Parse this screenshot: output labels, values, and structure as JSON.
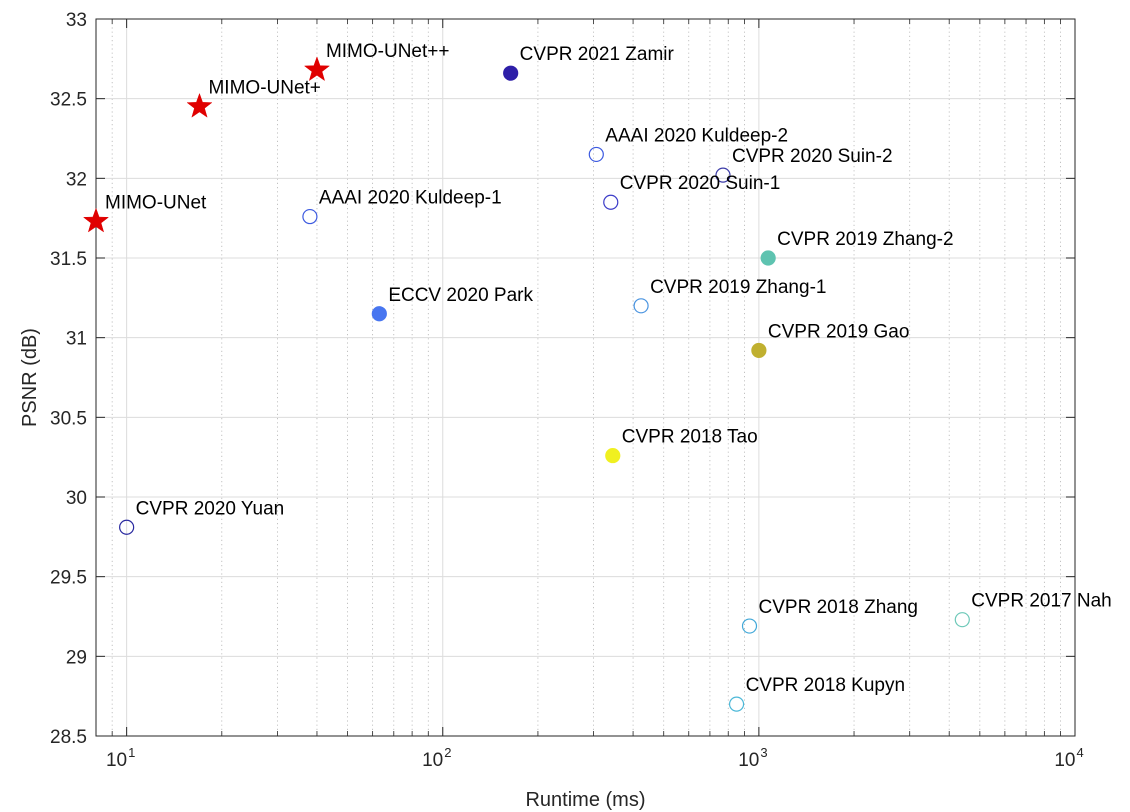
{
  "chart_data": {
    "type": "scatter",
    "title": "",
    "xlabel": "Runtime (ms)",
    "ylabel": "PSNR (dB)",
    "xscale": "log",
    "xlim": [
      8,
      10000
    ],
    "ylim": [
      28.5,
      33
    ],
    "grid": true,
    "minor_grid": true,
    "x_ticks": [
      {
        "value": 10,
        "base": "10",
        "exp": "1"
      },
      {
        "value": 100,
        "base": "10",
        "exp": "2"
      },
      {
        "value": 1000,
        "base": "10",
        "exp": "3"
      },
      {
        "value": 10000,
        "base": "10",
        "exp": "4"
      }
    ],
    "y_ticks": [
      {
        "value": 28.5,
        "label": "28.5"
      },
      {
        "value": 29,
        "label": "29"
      },
      {
        "value": 29.5,
        "label": "29.5"
      },
      {
        "value": 30,
        "label": "30"
      },
      {
        "value": 30.5,
        "label": "30.5"
      },
      {
        "value": 31,
        "label": "31"
      },
      {
        "value": 31.5,
        "label": "31.5"
      },
      {
        "value": 32,
        "label": "32"
      },
      {
        "value": 32.5,
        "label": "32.5"
      },
      {
        "value": 33,
        "label": "33"
      }
    ],
    "points": [
      {
        "label": "MIMO-UNet",
        "x": 8,
        "y": 31.73,
        "marker": "star",
        "color": "#e00000",
        "filled": true
      },
      {
        "label": "MIMO-UNet+",
        "x": 17,
        "y": 32.45,
        "marker": "star",
        "color": "#e00000",
        "filled": true
      },
      {
        "label": "MIMO-UNet++",
        "x": 40,
        "y": 32.68,
        "marker": "star",
        "color": "#e00000",
        "filled": true
      },
      {
        "label": "CVPR 2021 Zamir",
        "x": 164,
        "y": 32.66,
        "marker": "circle",
        "color": "#2e1fa8",
        "filled": true
      },
      {
        "label": "AAAI 2020 Kuldeep-2",
        "x": 306,
        "y": 32.15,
        "marker": "circle",
        "color": "#3c5ae0",
        "filled": false
      },
      {
        "label": "CVPR 2020 Suin-2",
        "x": 770,
        "y": 32.02,
        "marker": "circle",
        "color": "#3c3ca8",
        "filled": false
      },
      {
        "label": "CVPR 2020 Suin-1",
        "x": 340,
        "y": 31.85,
        "marker": "circle",
        "color": "#3c3cc8",
        "filled": false
      },
      {
        "label": "AAAI 2020 Kuldeep-1",
        "x": 38,
        "y": 31.76,
        "marker": "circle",
        "color": "#3c5ae0",
        "filled": false
      },
      {
        "label": "CVPR 2019 Zhang-2",
        "x": 1070,
        "y": 31.5,
        "marker": "circle",
        "color": "#5ec3b0",
        "filled": true
      },
      {
        "label": "ECCV 2020 Park",
        "x": 63,
        "y": 31.15,
        "marker": "circle",
        "color": "#4876f0",
        "filled": true
      },
      {
        "label": "CVPR 2019 Zhang-1",
        "x": 424,
        "y": 31.2,
        "marker": "circle",
        "color": "#4a94e0",
        "filled": false
      },
      {
        "label": "CVPR 2019 Gao",
        "x": 1000,
        "y": 30.92,
        "marker": "circle",
        "color": "#c0b030",
        "filled": true
      },
      {
        "label": "CVPR 2018 Tao",
        "x": 345,
        "y": 30.26,
        "marker": "circle",
        "color": "#f0f020",
        "filled": true
      },
      {
        "label": "CVPR 2020 Yuan",
        "x": 10,
        "y": 29.81,
        "marker": "circle",
        "color": "#2a2aa0",
        "filled": false
      },
      {
        "label": "CVPR 2018 Zhang",
        "x": 934,
        "y": 29.19,
        "marker": "circle",
        "color": "#42a8d8",
        "filled": false
      },
      {
        "label": "CVPR 2017 Nah",
        "x": 4400,
        "y": 29.23,
        "marker": "circle",
        "color": "#6cc8b8",
        "filled": false
      },
      {
        "label": "CVPR 2018 Kupyn",
        "x": 850,
        "y": 28.7,
        "marker": "circle",
        "color": "#4cb8d8",
        "filled": false
      }
    ]
  }
}
